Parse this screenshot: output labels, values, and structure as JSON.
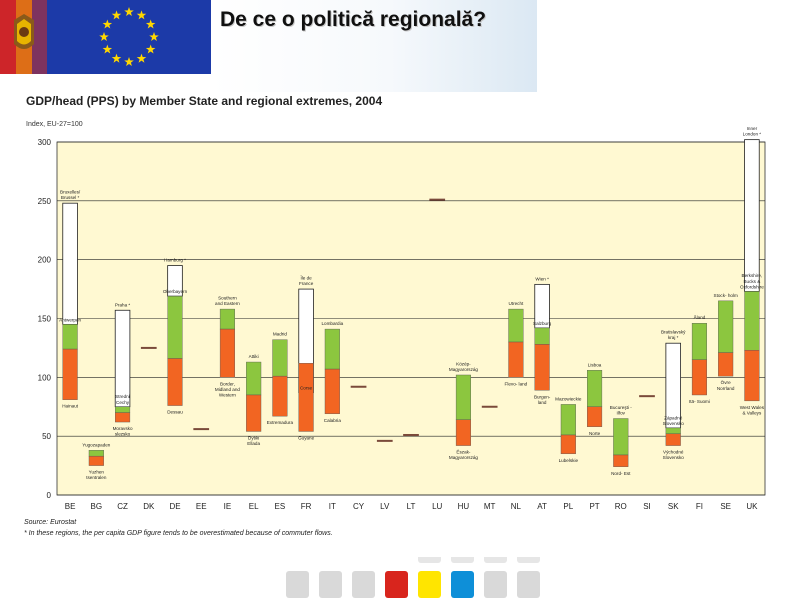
{
  "slide": {
    "title": "De ce o politică regională?",
    "source": "Source: Eurostat",
    "footnote": "* In these regions, the per capita GDP figure tends to be overestimated because of commuter flows."
  },
  "colors": {
    "plot_background": "#fff9d2",
    "upper_band": "#8cc63f",
    "lower_band": "#f26522",
    "eu_blue": "#1c3aa8",
    "eu_star": "#ffd700"
  },
  "nav_buttons": [
    {
      "name": "nav-button-1",
      "color": "#d9d9d9"
    },
    {
      "name": "nav-button-2",
      "color": "#d9d9d9"
    },
    {
      "name": "nav-button-3",
      "color": "#d9d9d9"
    },
    {
      "name": "nav-button-4",
      "color": "#d8251d"
    },
    {
      "name": "nav-button-5",
      "color": "#ffe500"
    },
    {
      "name": "nav-button-6",
      "color": "#0e8fd8"
    },
    {
      "name": "nav-button-7",
      "color": "#d9d9d9"
    },
    {
      "name": "nav-button-8",
      "color": "#d9d9d9"
    }
  ],
  "chart_data": {
    "type": "bar",
    "title": "GDP/head (PPS) by Member State and regional extremes, 2004",
    "ylabel": "Index, EU-27=100",
    "xlabel": "",
    "ylim": [
      0,
      300
    ],
    "yticks": [
      0,
      50,
      100,
      150,
      200,
      250,
      300
    ],
    "grid": true,
    "categories": [
      "BE",
      "BG",
      "CZ",
      "DK",
      "DE",
      "EE",
      "IE",
      "EL",
      "ES",
      "FR",
      "IT",
      "CY",
      "LV",
      "LT",
      "LU",
      "HU",
      "MT",
      "NL",
      "AT",
      "PL",
      "PT",
      "RO",
      "SI",
      "SK",
      "FI",
      "SE",
      "UK"
    ],
    "series": [
      {
        "values": [
          {
            "min": 81,
            "national": 124,
            "max": 248,
            "max_region": "Bruxelles/ Brussel *",
            "max2": 145,
            "max2_region": "Antwerpen",
            "min_region": "Hainaut"
          },
          {
            "min": 25,
            "national": 33,
            "max": 38,
            "max_region": "Yugozapaden",
            "min_region": "Yuzhen tsentralen"
          },
          {
            "min": 62,
            "national": 70,
            "max": 157,
            "max_region": "Praha *",
            "max2": 75,
            "max2_region": "Strední Cechy",
            "min_region": "Moravsko slezsko"
          },
          {
            "national": 125
          },
          {
            "min": 76,
            "national": 116,
            "max": 195,
            "max_region": "Hamburg *",
            "max2": 169,
            "max2_region": "Oberbayern",
            "min_region": "Dessau"
          },
          {
            "national": 56
          },
          {
            "min": 100,
            "national": 141,
            "max": 158,
            "max_region": "Southern and Eastern",
            "min_region": "Border, Midland and Western"
          },
          {
            "min": 54,
            "national": 85,
            "max": 113,
            "max_region": "Attiki",
            "min_region": "Dytiki Ellada"
          },
          {
            "min": 67,
            "national": 101,
            "max": 132,
            "max_region": "Madrid",
            "min_region": "Extremadura"
          },
          {
            "min": 54,
            "national": 112,
            "max": 175,
            "max_region": "Île de France",
            "max2": 87,
            "max2_region": "Corse",
            "min_region": "Guyane"
          },
          {
            "min": 69,
            "national": 107,
            "max": 141,
            "max_region": "Lombardia",
            "min_region": "Calabria"
          },
          {
            "national": 92
          },
          {
            "national": 46
          },
          {
            "national": 51
          },
          {
            "national": 251
          },
          {
            "min": 42,
            "national": 64,
            "max": 102,
            "max_region": "Közép- Magyarország",
            "min_region": "Észak- Magyarország"
          },
          {
            "national": 75
          },
          {
            "min": 100,
            "national": 130,
            "max": 158,
            "max_region": "Utrecht",
            "min_region": "Flevo- land"
          },
          {
            "min": 89,
            "national": 128,
            "max": 179,
            "max_region": "Wien *",
            "max2": 142,
            "max2_region": "Salzburg",
            "min_region": "Burgen- land"
          },
          {
            "min": 35,
            "national": 51,
            "max": 77,
            "max_region": "Mazowieckie",
            "min_region": "Lubelskie"
          },
          {
            "min": 58,
            "national": 75,
            "max": 106,
            "max_region": "Lisboa",
            "min_region": "Norte"
          },
          {
            "min": 24,
            "national": 34,
            "max": 65,
            "max_region": "Bucureşti - Ilfov",
            "min_region": "Nord- Est"
          },
          {
            "national": 84
          },
          {
            "min": 42,
            "national": 52,
            "max": 129,
            "max_region": "Bratislavský kraj *",
            "max2": 57,
            "max2_region": "Západné Slovensko",
            "min_region": "Východné Slovensko"
          },
          {
            "min": 85,
            "national": 115,
            "max": 146,
            "max_region": "Åland",
            "min_region": "Itä- Suomi"
          },
          {
            "min": 101,
            "national": 121,
            "max": 165,
            "max_region": "Stock- holm",
            "min_region": "Övre Norrland"
          },
          {
            "min": 80,
            "national": 123,
            "max": 302,
            "max_region": "Inner London *",
            "max2": 173,
            "max2_region": "Berkshire, Bucks & Oxfordshire",
            "min_region": "West Wales & Valleys"
          }
        ]
      }
    ]
  }
}
